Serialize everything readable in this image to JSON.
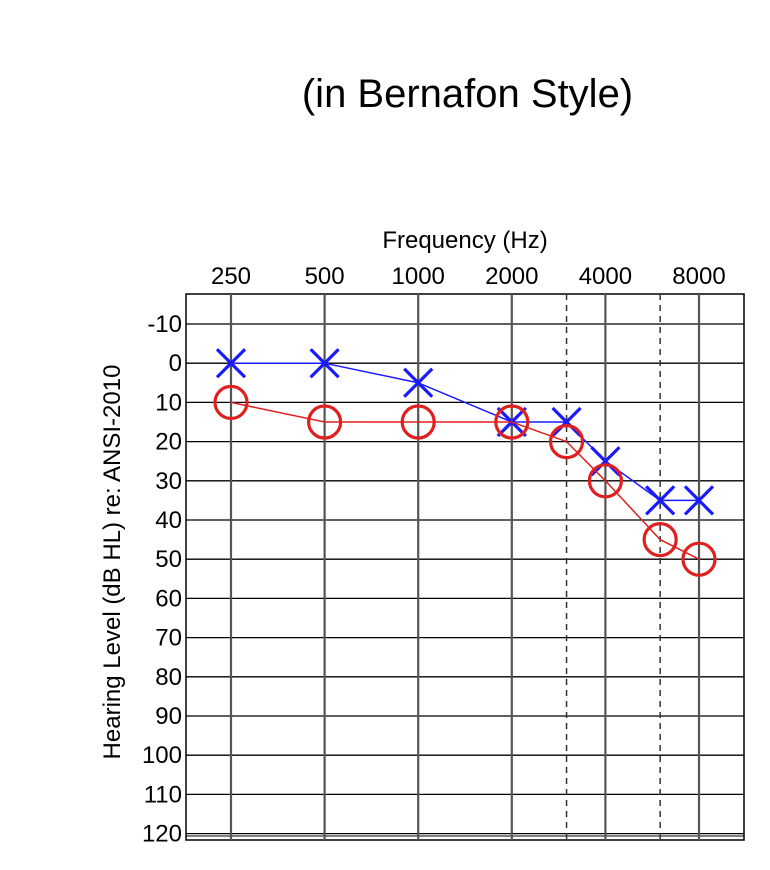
{
  "caption": "(in Bernafon Style)",
  "chart_data": {
    "type": "line",
    "xlabel": "Frequency (Hz)",
    "ylabel": "Hearing Level (dB HL) re: ANSI-2010",
    "x_ticks": [
      "250",
      "500",
      "1000",
      "2000",
      "4000",
      "8000"
    ],
    "x_tick_values": [
      250,
      500,
      1000,
      2000,
      4000,
      8000
    ],
    "x_scale": "log",
    "x_half_octaves": [
      3000,
      6000
    ],
    "y_ticks": [
      -10,
      0,
      10,
      20,
      30,
      40,
      50,
      60,
      70,
      80,
      90,
      100,
      110,
      120
    ],
    "ylim": [
      -10,
      120
    ],
    "y_inverted": true,
    "grid": true,
    "series": [
      {
        "marker": "x",
        "color": "#1a1aff",
        "x": [
          250,
          500,
          1000,
          2000,
          3000,
          4000,
          6000,
          8000
        ],
        "y": [
          0,
          0,
          5,
          15,
          15,
          25,
          35,
          35
        ]
      },
      {
        "marker": "o",
        "color": "#e02020",
        "x": [
          250,
          500,
          1000,
          2000,
          3000,
          4000,
          6000,
          8000
        ],
        "y": [
          10,
          15,
          15,
          15,
          20,
          30,
          45,
          50
        ]
      }
    ]
  }
}
